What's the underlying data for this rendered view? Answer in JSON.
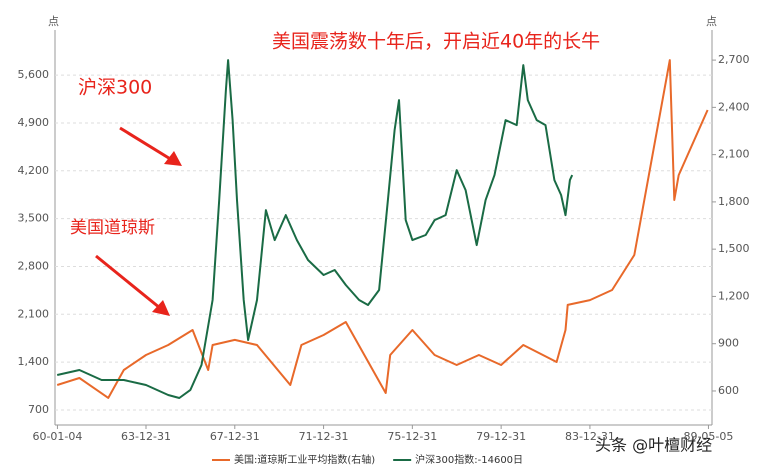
{
  "chart_data": {
    "type": "line",
    "title": "美国震荡数十年后，开启近40年的长牛",
    "annotations": [
      "沪深300",
      "美国道琼斯"
    ],
    "y_unit": "点",
    "y2_unit": "点",
    "watermark": "头条 @叶檀财经",
    "xlim": [
      1959.9,
      1989.5
    ],
    "xticks": [
      {
        "value": 1960.01,
        "label": "60-01-04"
      },
      {
        "value": 1964.0,
        "label": "63-12-31"
      },
      {
        "value": 1968.0,
        "label": "67-12-31"
      },
      {
        "value": 1972.0,
        "label": "71-12-31"
      },
      {
        "value": 1976.0,
        "label": "75-12-31"
      },
      {
        "value": 1980.0,
        "label": "79-12-31"
      },
      {
        "value": 1984.0,
        "label": "83-12-31"
      },
      {
        "value": 1989.34,
        "label": "89-05-05"
      }
    ],
    "ylim": [
      480,
      6260
    ],
    "yticks": [
      {
        "value": 700,
        "label": "700"
      },
      {
        "value": 1400,
        "label": "1,400"
      },
      {
        "value": 2100,
        "label": "2,100"
      },
      {
        "value": 2800,
        "label": "2,800"
      },
      {
        "value": 3500,
        "label": "3,500"
      },
      {
        "value": 4200,
        "label": "4,200"
      },
      {
        "value": 4900,
        "label": "4,900"
      },
      {
        "value": 5600,
        "label": "5,600"
      }
    ],
    "y2lim": [
      384,
      2891
    ],
    "y2ticks": [
      {
        "value": 600,
        "label": "600"
      },
      {
        "value": 900,
        "label": "900"
      },
      {
        "value": 1200,
        "label": "1,200"
      },
      {
        "value": 1500,
        "label": "1,500"
      },
      {
        "value": 1800,
        "label": "1,800"
      },
      {
        "value": 2100,
        "label": "2,100"
      },
      {
        "value": 2400,
        "label": "2,400"
      },
      {
        "value": 2700,
        "label": "2,700"
      }
    ],
    "grid": true,
    "legend": "bottom",
    "series": [
      {
        "name": "美国:道琼斯工业平均指数(右轴)",
        "color": "#e8692a",
        "axis": "y2",
        "x": [
          1960,
          1961,
          1962.3,
          1963,
          1964,
          1965,
          1966.1,
          1966.8,
          1967,
          1968,
          1969,
          1970.5,
          1971,
          1972,
          1973.0,
          1974.8,
          1975,
          1976,
          1977,
          1978,
          1979,
          1980,
          1981,
          1982.5,
          1982.9,
          1983,
          1984,
          1985,
          1986,
          1987.6,
          1987.8,
          1988,
          1989.3
        ],
        "values": [
          638,
          682,
          556,
          733,
          828,
          892,
          987,
          733,
          892,
          924,
          892,
          638,
          892,
          955,
          1038,
          587,
          828,
          987,
          828,
          765,
          828,
          765,
          892,
          784,
          987,
          1146,
          1177,
          1241,
          1463,
          2700,
          1812,
          1970,
          2383
        ]
      },
      {
        "name": "沪深300指数:-14600日",
        "color": "#1a6b45",
        "axis": "y",
        "x": [
          1960,
          1961,
          1962,
          1963,
          1964,
          1965,
          1965.5,
          1966,
          1966.5,
          1967,
          1967.3,
          1967.6,
          1967.7,
          1967.9,
          1968.1,
          1968.4,
          1968.6,
          1969,
          1969.4,
          1969.8,
          1970.3,
          1970.8,
          1971.3,
          1972,
          1972.5,
          1973,
          1973.6,
          1974,
          1974.5,
          1974.9,
          1975.2,
          1975.4,
          1975.7,
          1976,
          1976.6,
          1977,
          1977.5,
          1978,
          1978.4,
          1978.9,
          1979.3,
          1979.7,
          1980.2,
          1980.7,
          1981,
          1981.2,
          1981.6,
          1982,
          1982.4,
          1982.7,
          1982.9,
          1983.1,
          1983.2
        ],
        "values": [
          1212,
          1285,
          1139,
          1139,
          1066,
          919,
          875,
          993,
          1358,
          2309,
          3771,
          5380,
          5819,
          4942,
          3771,
          2309,
          1724,
          2309,
          3625,
          3186,
          3552,
          3186,
          2894,
          2675,
          2748,
          2528,
          2309,
          2236,
          2455,
          3771,
          4795,
          5234,
          3479,
          3186,
          3260,
          3479,
          3552,
          4210,
          3918,
          3113,
          3771,
          4137,
          4942,
          4868,
          5746,
          5234,
          4942,
          4868,
          4064,
          3845,
          3552,
          4064,
          4137
        ]
      }
    ]
  }
}
